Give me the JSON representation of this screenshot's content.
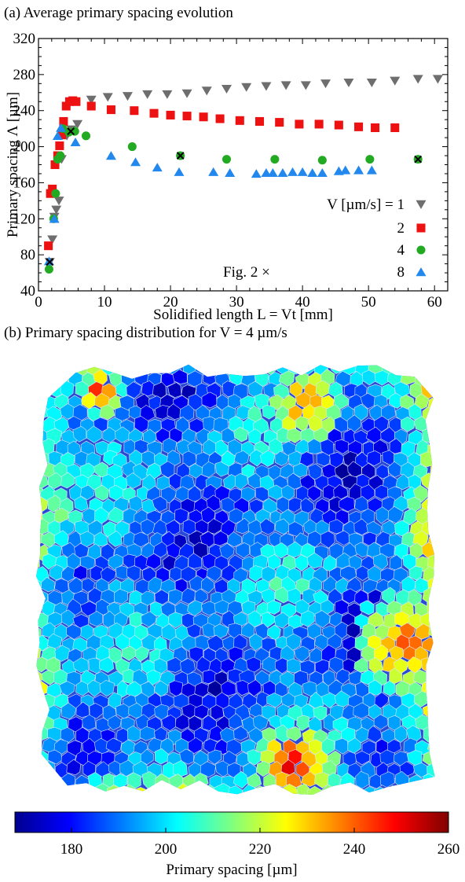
{
  "panel_a": {
    "caption": "(a) Average primary spacing evolution"
  },
  "panel_b": {
    "caption": "(b) Primary spacing distribution for V = 4 µm/s"
  },
  "chart_data": [
    {
      "type": "scatter",
      "title": "(a) Average primary spacing evolution",
      "xlabel": "Solidified length L = Vt [mm]",
      "ylabel": "Primary spacing Λ [µm]",
      "xlim": [
        0,
        62
      ],
      "ylim": [
        40,
        320
      ],
      "xticks": [
        0,
        10,
        20,
        30,
        40,
        50,
        60
      ],
      "yticks": [
        40,
        80,
        120,
        160,
        200,
        240,
        280,
        320
      ],
      "grid": false,
      "legend": {
        "placement": "bottom-right",
        "title": "V [µm/s] = ",
        "marker_label": "Fig. 2",
        "marker_symbol": "×"
      },
      "series": [
        {
          "name": "1",
          "marker": "triangle-down",
          "color": "#6e6e6e",
          "points": [
            [
              1.7,
              72
            ],
            [
              2.1,
              97
            ],
            [
              2.4,
              122
            ],
            [
              2.7,
              130
            ],
            [
              3.1,
              140
            ],
            [
              3.5,
              186
            ],
            [
              4.3,
              212
            ],
            [
              5.0,
              219
            ],
            [
              5.9,
              225
            ],
            [
              8.0,
              252
            ],
            [
              10.5,
              255
            ],
            [
              13.5,
              256
            ],
            [
              16.5,
              258
            ],
            [
              19.5,
              258
            ],
            [
              22.5,
              259
            ],
            [
              25.5,
              262
            ],
            [
              28.5,
              264
            ],
            [
              31.5,
              266
            ],
            [
              34.5,
              267
            ],
            [
              37.5,
              268
            ],
            [
              40.5,
              268
            ],
            [
              43.5,
              270
            ],
            [
              47.0,
              271
            ],
            [
              50.5,
              271
            ],
            [
              54.0,
              273
            ],
            [
              57.5,
              275
            ],
            [
              60.5,
              275
            ]
          ]
        },
        {
          "name": "2",
          "marker": "square",
          "color": "#ee1111",
          "points": [
            [
              1.5,
              90
            ],
            [
              1.8,
              148
            ],
            [
              2.1,
              153
            ],
            [
              2.5,
              180
            ],
            [
              2.9,
              190
            ],
            [
              3.2,
              201
            ],
            [
              3.5,
              213
            ],
            [
              3.8,
              228
            ],
            [
              4.2,
              245
            ],
            [
              4.7,
              250
            ],
            [
              5.2,
              251
            ],
            [
              5.7,
              250
            ],
            [
              8.0,
              245
            ],
            [
              11.0,
              241
            ],
            [
              14.5,
              240
            ],
            [
              17.5,
              237
            ],
            [
              20.0,
              235
            ],
            [
              22.5,
              234
            ],
            [
              25.0,
              233
            ],
            [
              27.5,
              231
            ],
            [
              30.5,
              229
            ],
            [
              33.5,
              228
            ],
            [
              36.5,
              227
            ],
            [
              39.5,
              225
            ],
            [
              42.5,
              225
            ],
            [
              45.5,
              224
            ],
            [
              48.5,
              222
            ],
            [
              51.0,
              221
            ],
            [
              54.0,
              221
            ]
          ]
        },
        {
          "name": "4",
          "marker": "circle",
          "color": "#22aa22",
          "points": [
            [
              1.6,
              64
            ],
            [
              2.3,
              120
            ],
            [
              2.6,
              148
            ],
            [
              2.9,
              186
            ],
            [
              3.3,
              190
            ],
            [
              3.7,
              220
            ],
            [
              4.6,
              216
            ],
            [
              5.5,
              217
            ],
            [
              7.2,
              212
            ],
            [
              14.2,
              200
            ],
            [
              21.5,
              190
            ],
            [
              28.5,
              186
            ],
            [
              35.8,
              186
            ],
            [
              43.0,
              185
            ],
            [
              50.2,
              186
            ],
            [
              57.5,
              186
            ]
          ]
        },
        {
          "name": "8",
          "marker": "triangle-up",
          "color": "#2288ee",
          "points": [
            [
              1.6,
              73
            ],
            [
              2.4,
              120
            ],
            [
              2.9,
              212
            ],
            [
              3.4,
              221
            ],
            [
              5.6,
              205
            ],
            [
              11.0,
              190
            ],
            [
              14.7,
              183
            ],
            [
              18.0,
              177
            ],
            [
              21.3,
              172
            ],
            [
              26.5,
              172
            ],
            [
              29.0,
              171
            ],
            [
              33.0,
              170
            ],
            [
              34.5,
              171
            ],
            [
              35.5,
              171
            ],
            [
              37.0,
              171
            ],
            [
              38.5,
              172
            ],
            [
              40.0,
              172
            ],
            [
              41.5,
              171
            ],
            [
              43.0,
              171
            ],
            [
              45.5,
              173
            ],
            [
              46.5,
              174
            ],
            [
              48.5,
              174
            ],
            [
              50.5,
              174
            ]
          ]
        },
        {
          "name": "Fig. 2",
          "marker": "x",
          "color": "#000000",
          "points": [
            [
              1.7,
              72
            ],
            [
              4.9,
              217
            ],
            [
              21.5,
              190
            ],
            [
              57.5,
              186
            ]
          ]
        }
      ]
    },
    {
      "type": "heatmap",
      "title": "(b) Primary spacing distribution for V = 4 µm/s",
      "colorbar": {
        "label": "Primary spacing [µm]",
        "min": 168,
        "max": 260,
        "ticks": [
          180,
          200,
          220,
          240,
          260
        ],
        "colormap": "jet"
      },
      "description_values": {
        "typical_range": [
          175,
          205
        ],
        "hot_spots": [
          {
            "region": "top-right",
            "value": 240
          },
          {
            "region": "right-lower",
            "value": 245
          },
          {
            "region": "bottom-center",
            "value": 255
          },
          {
            "region": "top-left",
            "value": 255
          }
        ]
      }
    }
  ]
}
